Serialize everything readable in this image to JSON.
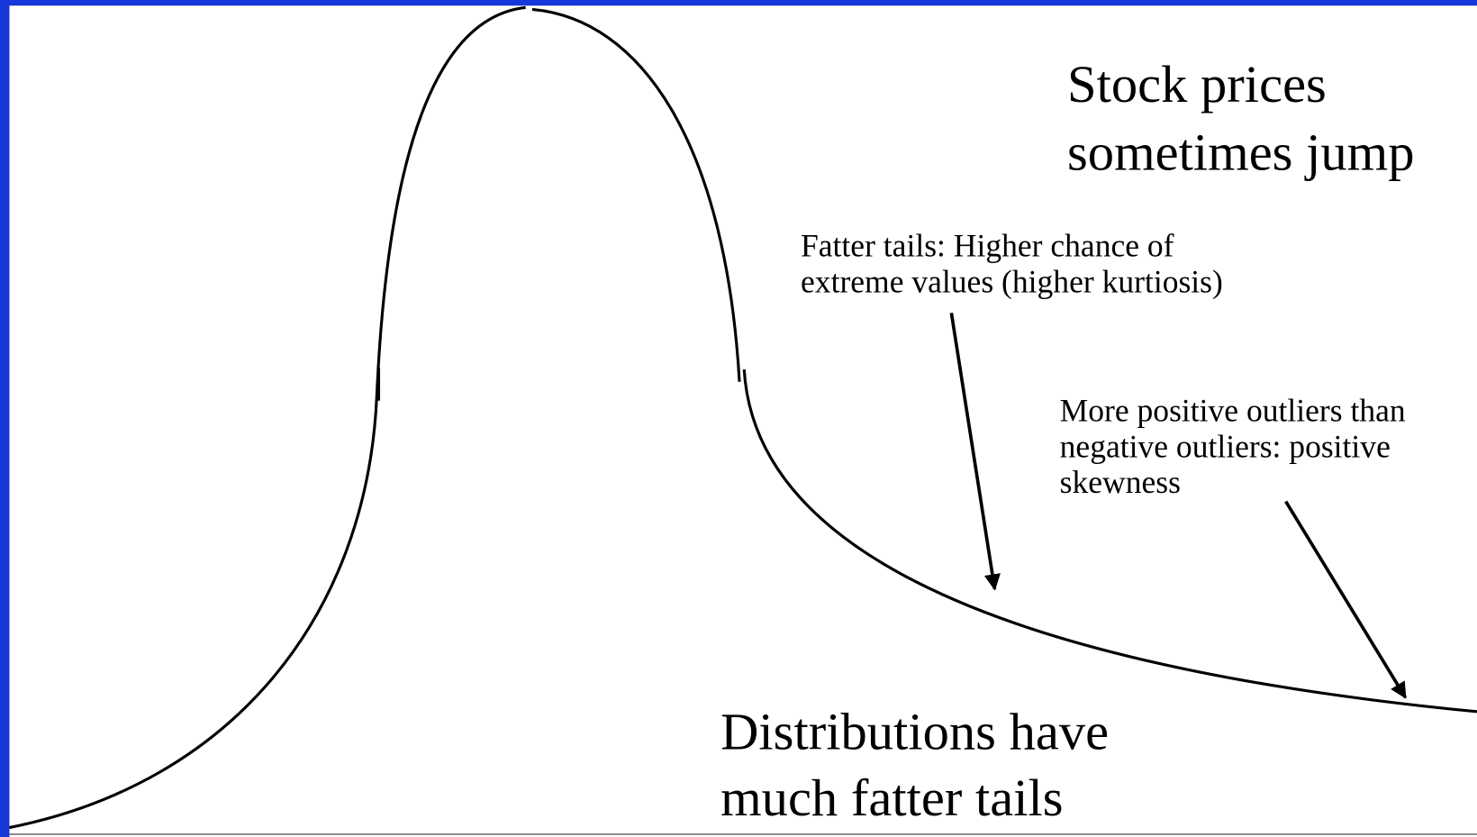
{
  "slide": {
    "title": [
      "Stock prices",
      "sometimes jump"
    ],
    "fat_tails_note": [
      "Fatter tails: Higher chance of",
      "extreme values (higher kurtiosis)"
    ],
    "skewness_note": [
      "More positive outliers than",
      "negative outliers: positive",
      "skewness"
    ],
    "conclusion": [
      "Distributions have",
      "much fatter tails"
    ]
  }
}
